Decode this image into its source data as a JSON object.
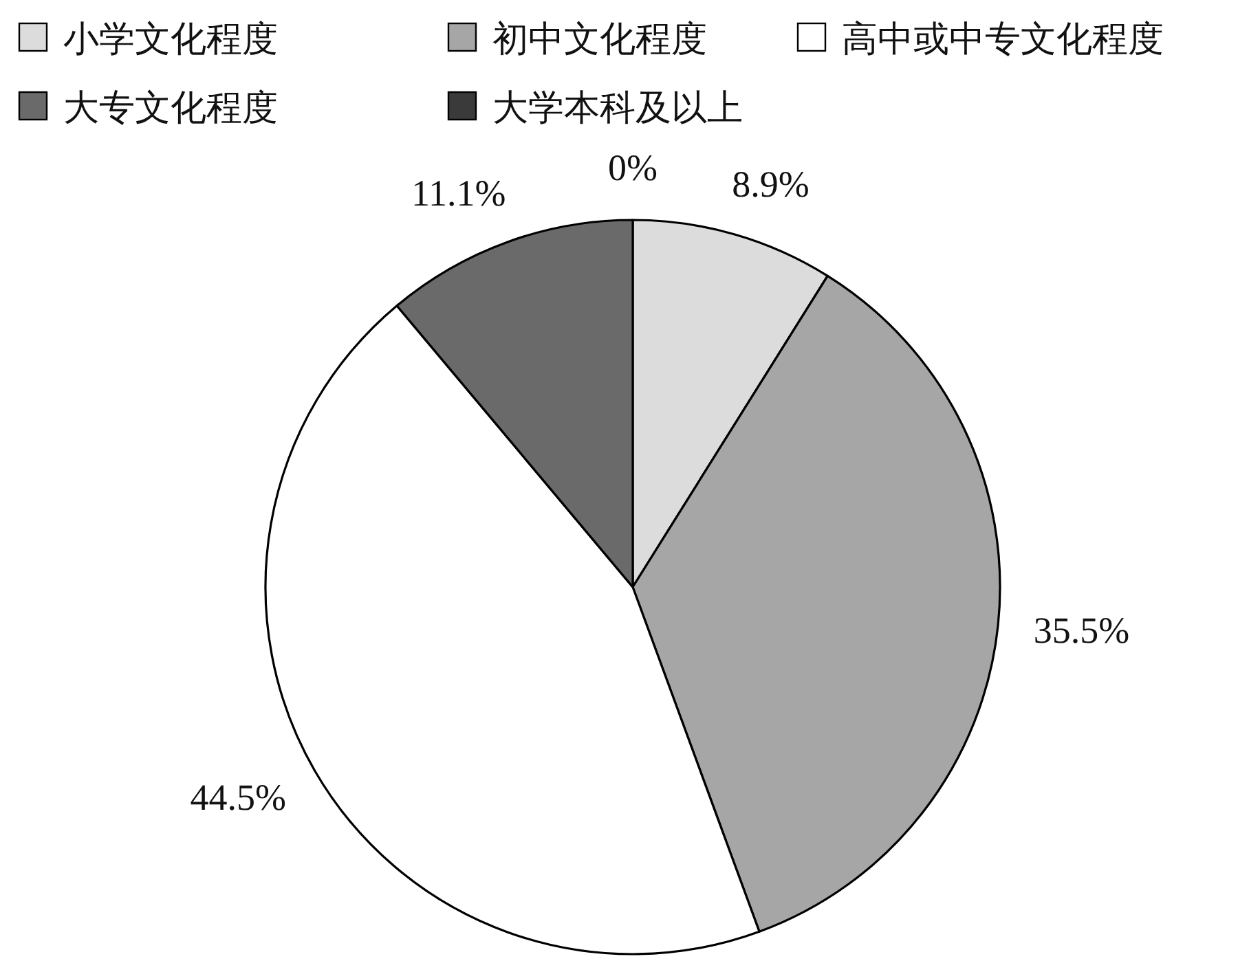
{
  "chart_data": {
    "type": "pie",
    "categories": [
      "小学文化程度",
      "初中文化程度",
      "高中或中专文化程度",
      "大专文化程度",
      "大学本科及以上"
    ],
    "values": [
      8.9,
      35.5,
      44.5,
      11.1,
      0
    ],
    "value_labels": [
      "8.9%",
      "35.5%",
      "44.5%",
      "11.1%",
      "0%"
    ],
    "colors": [
      "#dcdcdc",
      "#a6a6a6",
      "#ffffff",
      "#6a6a6a",
      "#3a3a3a"
    ],
    "legend": "top"
  }
}
